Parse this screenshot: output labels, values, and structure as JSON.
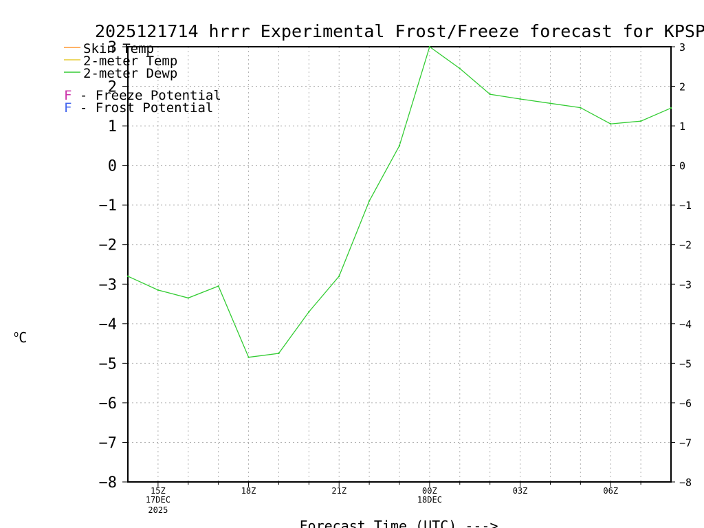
{
  "chart_data": {
    "type": "line",
    "title": "2025121714 hrrr Experimental Frost/Freeze forecast for KPSP",
    "xlabel": "Forecast Time (UTC) --->",
    "ylabel": "°C",
    "ylabel_sup": "o",
    "ylabel_unit": "C",
    "ylim": [
      -8,
      3
    ],
    "xlim": [
      14,
      32
    ],
    "y_ticks": [
      -8,
      -7,
      -6,
      -5,
      -4,
      -3,
      -2,
      -1,
      0,
      1,
      2,
      3
    ],
    "y_tick_labels": [
      "−8",
      "−7",
      "−6",
      "−5",
      "−4",
      "−3",
      "−2",
      "−1",
      "0",
      "1",
      "2",
      "3"
    ],
    "x_ticks": [
      {
        "x": 15,
        "label": "15Z",
        "sub1": "17DEC",
        "sub2": "2025"
      },
      {
        "x": 18,
        "label": "18Z",
        "sub1": "",
        "sub2": ""
      },
      {
        "x": 21,
        "label": "21Z",
        "sub1": "",
        "sub2": ""
      },
      {
        "x": 24,
        "label": "00Z",
        "sub1": "18DEC",
        "sub2": ""
      },
      {
        "x": 27,
        "label": "03Z",
        "sub1": "",
        "sub2": ""
      },
      {
        "x": 30,
        "label": "06Z",
        "sub1": "",
        "sub2": ""
      }
    ],
    "grid": true,
    "series": [
      {
        "name": "2-meter Dewp",
        "color": "#33cc33",
        "x": [
          14,
          15,
          16,
          17,
          18,
          19,
          20,
          21,
          22,
          23,
          24,
          25,
          26,
          27,
          28,
          29,
          30,
          31,
          32
        ],
        "values": [
          -2.8,
          -3.15,
          -3.35,
          -3.05,
          -4.85,
          -4.75,
          -3.7,
          -2.8,
          -0.9,
          0.5,
          3.0,
          2.45,
          1.8,
          1.68,
          1.57,
          1.46,
          1.05,
          1.12,
          1.45
        ]
      }
    ],
    "legend": {
      "placement": "top-left",
      "lines": [
        {
          "label": "Skin Temp",
          "color": "#ff9933"
        },
        {
          "label": "2-meter Temp",
          "color": "#e6cc33"
        },
        {
          "label": "2-meter Dewp",
          "color": "#33cc33"
        }
      ],
      "potentials": [
        {
          "letter": "F",
          "text": " - Freeze Potential",
          "color": "#cc33aa"
        },
        {
          "letter": "F",
          "text": " - Frost Potential",
          "color": "#4466ee"
        }
      ]
    }
  }
}
